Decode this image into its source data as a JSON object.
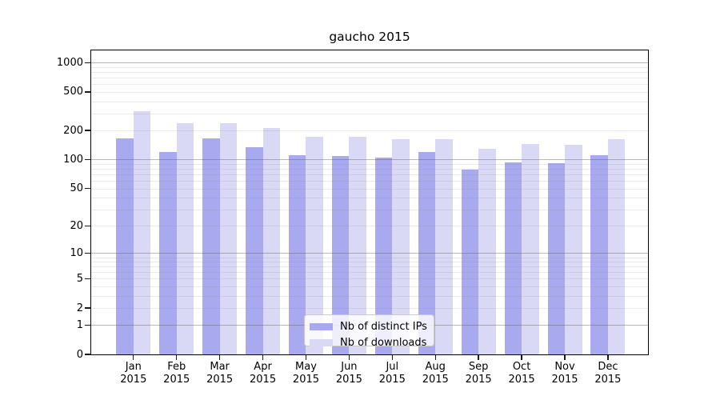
{
  "chart_data": {
    "type": "bar",
    "title": "gaucho 2015",
    "x_months": [
      "Jan",
      "Feb",
      "Mar",
      "Apr",
      "May",
      "Jun",
      "Jul",
      "Aug",
      "Sep",
      "Oct",
      "Nov",
      "Dec"
    ],
    "x_year": "2015",
    "categories": [
      "Jan 2015",
      "Feb 2015",
      "Mar 2015",
      "Apr 2015",
      "May 2015",
      "Jun 2015",
      "Jul 2015",
      "Aug 2015",
      "Sep 2015",
      "Oct 2015",
      "Nov 2015",
      "Dec 2015"
    ],
    "series": [
      {
        "name": "Nb of distinct IPs",
        "color": "#a9a9f0",
        "values": [
          165,
          120,
          167,
          134,
          111,
          109,
          104,
          120,
          78,
          94,
          92,
          110
        ]
      },
      {
        "name": "Nb of downloads",
        "color": "#d9d9f6",
        "values": [
          315,
          238,
          240,
          212,
          172,
          172,
          162,
          164,
          129,
          145,
          141,
          162
        ]
      }
    ],
    "yticks": [
      0,
      1,
      2,
      5,
      10,
      20,
      50,
      100,
      200,
      500,
      1000
    ],
    "ylim": [
      0,
      1350
    ],
    "y_scale": "log1p",
    "grid": true,
    "legend_position": "lower center",
    "colors": {
      "axis": "#000000",
      "major_grid": "#bababa",
      "minor_grid": "#e7e7e7",
      "background": "#ffffff"
    }
  }
}
